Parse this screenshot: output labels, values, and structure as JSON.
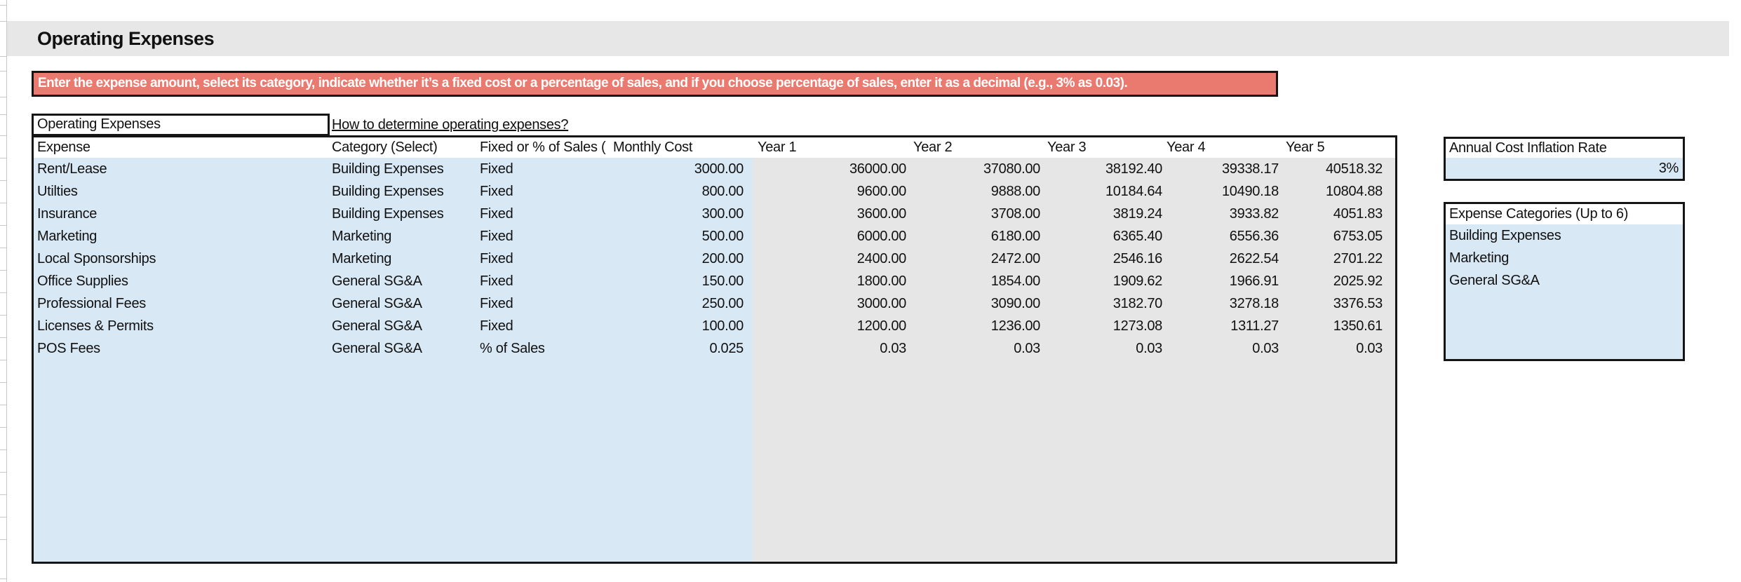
{
  "page": {
    "title": "Operating Expenses"
  },
  "banner": {
    "text": "Enter the expense amount, select its category, indicate whether it’s a fixed cost or a percentage of sales, and if you choose percentage of sales, enter it as a decimal (e.g., 3% as 0.03)."
  },
  "section": {
    "box_label": "Operating Expenses",
    "help_link": "How to determine operating expenses?"
  },
  "table": {
    "headers": [
      "Expense",
      "Category (Select)",
      "Fixed or % of Sales (",
      "Monthly Cost",
      "Year 1",
      "Year 2",
      "Year 3",
      "Year 4",
      "Year 5"
    ],
    "rows": [
      {
        "expense": "Rent/Lease",
        "category": "Building Expenses",
        "cost_type": "Fixed",
        "monthly_cost": "3000.00",
        "years": [
          "36000.00",
          "37080.00",
          "38192.40",
          "39338.17",
          "40518.32"
        ]
      },
      {
        "expense": "Utilties",
        "category": "Building Expenses",
        "cost_type": "Fixed",
        "monthly_cost": "800.00",
        "years": [
          "9600.00",
          "9888.00",
          "10184.64",
          "10490.18",
          "10804.88"
        ]
      },
      {
        "expense": "Insurance",
        "category": "Building Expenses",
        "cost_type": "Fixed",
        "monthly_cost": "300.00",
        "years": [
          "3600.00",
          "3708.00",
          "3819.24",
          "3933.82",
          "4051.83"
        ]
      },
      {
        "expense": "Marketing",
        "category": "Marketing",
        "cost_type": "Fixed",
        "monthly_cost": "500.00",
        "years": [
          "6000.00",
          "6180.00",
          "6365.40",
          "6556.36",
          "6753.05"
        ]
      },
      {
        "expense": "Local Sponsorships",
        "category": "Marketing",
        "cost_type": "Fixed",
        "monthly_cost": "200.00",
        "years": [
          "2400.00",
          "2472.00",
          "2546.16",
          "2622.54",
          "2701.22"
        ]
      },
      {
        "expense": "Office Supplies",
        "category": "General SG&A",
        "cost_type": "Fixed",
        "monthly_cost": "150.00",
        "years": [
          "1800.00",
          "1854.00",
          "1909.62",
          "1966.91",
          "2025.92"
        ]
      },
      {
        "expense": "Professional Fees",
        "category": "General SG&A",
        "cost_type": "Fixed",
        "monthly_cost": "250.00",
        "years": [
          "3000.00",
          "3090.00",
          "3182.70",
          "3278.18",
          "3376.53"
        ]
      },
      {
        "expense": "Licenses & Permits",
        "category": "General SG&A",
        "cost_type": "Fixed",
        "monthly_cost": "100.00",
        "years": [
          "1200.00",
          "1236.00",
          "1273.08",
          "1311.27",
          "1350.61"
        ]
      },
      {
        "expense": "POS Fees",
        "category": "General SG&A",
        "cost_type": "% of Sales",
        "monthly_cost": "0.025",
        "years": [
          "0.03",
          "0.03",
          "0.03",
          "0.03",
          "0.03"
        ]
      }
    ]
  },
  "inflation_box": {
    "label": "Annual Cost Inflation Rate",
    "value": "3%"
  },
  "categories_box": {
    "label": "Expense Categories (Up to 6)",
    "items": [
      "Building Expenses",
      "Marketing",
      "General SG&A"
    ]
  },
  "colors": {
    "banner_bg": "#EA7A6F",
    "input_fill": "#D8E8F5",
    "calc_fill": "#E7E6E6",
    "band_fill": "#E8E7E7"
  }
}
